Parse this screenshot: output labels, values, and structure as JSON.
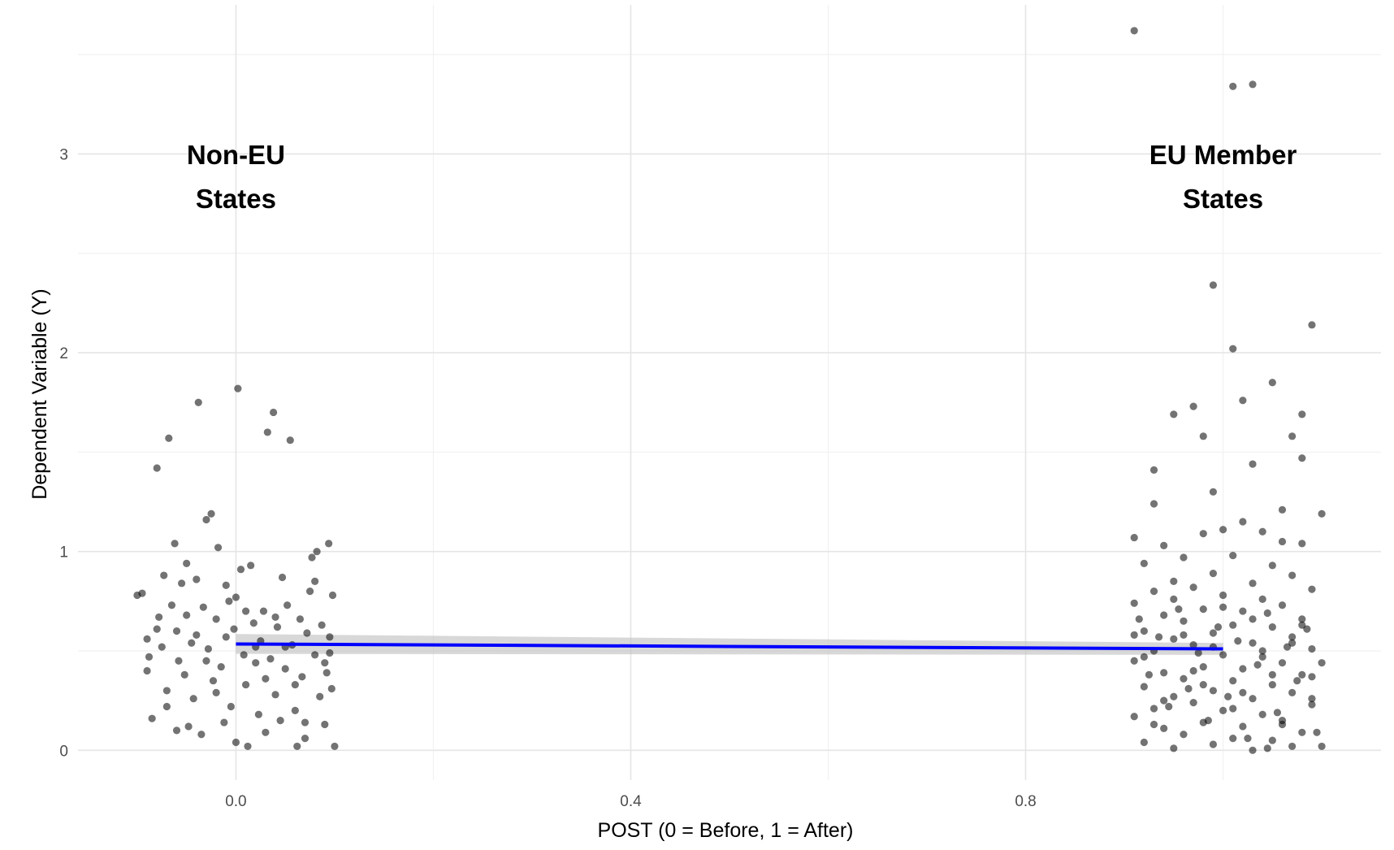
{
  "chart_data": {
    "type": "scatter",
    "title": "",
    "xlabel": "POST (0 = Before, 1 = After)",
    "ylabel": "Dependent Variable (Y)",
    "xlim": [
      -0.16,
      1.16
    ],
    "ylim": [
      -0.15,
      3.75
    ],
    "x_ticks": [
      0.0,
      0.4,
      0.8
    ],
    "x_tick_labels": [
      "0.0",
      "0.4",
      "0.8"
    ],
    "x_minor_ticks": [
      0.2,
      0.6,
      1.0
    ],
    "y_ticks": [
      0,
      1,
      2,
      3
    ],
    "y_tick_labels": [
      "0",
      "1",
      "2",
      "3"
    ],
    "y_minor_ticks": [
      0.5,
      1.5,
      2.5,
      3.5
    ],
    "grid": true,
    "legend": "none",
    "point_color": "#000000",
    "line_color": "#0000ff",
    "band_color": "#bebebe",
    "annotations": [
      {
        "lines": [
          "Non-EU",
          "States"
        ],
        "x": 0.0,
        "y": 2.9
      },
      {
        "lines": [
          "EU Member",
          "States"
        ],
        "x": 1.0,
        "y": 2.9
      }
    ],
    "fit_line": {
      "x": [
        0.0,
        1.0
      ],
      "y": [
        0.535,
        0.51
      ],
      "band_lower": [
        0.485,
        0.48
      ],
      "band_upper": [
        0.585,
        0.54
      ]
    },
    "series": [
      {
        "group": "Non-EU States",
        "points": [
          [
            -0.1,
            0.78
          ],
          [
            -0.095,
            0.79
          ],
          [
            -0.09,
            0.56
          ],
          [
            -0.088,
            0.47
          ],
          [
            -0.085,
            0.16
          ],
          [
            -0.08,
            1.42
          ],
          [
            -0.078,
            0.67
          ],
          [
            -0.075,
            0.52
          ],
          [
            -0.073,
            0.88
          ],
          [
            -0.07,
            0.3
          ],
          [
            -0.068,
            1.57
          ],
          [
            -0.065,
            0.73
          ],
          [
            -0.062,
            1.04
          ],
          [
            -0.06,
            0.6
          ],
          [
            -0.058,
            0.45
          ],
          [
            -0.055,
            0.84
          ],
          [
            -0.052,
            0.38
          ],
          [
            -0.05,
            0.68
          ],
          [
            -0.048,
            0.12
          ],
          [
            -0.045,
            0.54
          ],
          [
            -0.043,
            0.26
          ],
          [
            -0.04,
            0.86
          ],
          [
            -0.038,
            1.75
          ],
          [
            -0.035,
            0.08
          ],
          [
            -0.033,
            0.72
          ],
          [
            -0.03,
            1.16
          ],
          [
            -0.028,
            0.51
          ],
          [
            -0.025,
            1.19
          ],
          [
            -0.023,
            0.35
          ],
          [
            -0.02,
            0.66
          ],
          [
            -0.018,
            1.02
          ],
          [
            -0.015,
            0.42
          ],
          [
            -0.012,
            0.14
          ],
          [
            -0.01,
            0.57
          ],
          [
            -0.007,
            0.75
          ],
          [
            -0.005,
            0.22
          ],
          [
            -0.002,
            0.61
          ],
          [
            0.0,
            0.04
          ],
          [
            0.002,
            1.82
          ],
          [
            0.005,
            0.91
          ],
          [
            0.008,
            0.48
          ],
          [
            0.01,
            0.33
          ],
          [
            0.012,
            0.02
          ],
          [
            0.015,
            0.93
          ],
          [
            0.018,
            0.64
          ],
          [
            0.02,
            0.44
          ],
          [
            0.023,
            0.18
          ],
          [
            0.025,
            0.55
          ],
          [
            0.028,
            0.7
          ],
          [
            0.03,
            0.09
          ],
          [
            0.032,
            1.6
          ],
          [
            0.035,
            0.46
          ],
          [
            0.038,
            1.7
          ],
          [
            0.04,
            0.28
          ],
          [
            0.042,
            0.62
          ],
          [
            0.045,
            0.15
          ],
          [
            0.047,
            0.87
          ],
          [
            0.05,
            0.41
          ],
          [
            0.052,
            0.73
          ],
          [
            0.055,
            1.56
          ],
          [
            0.057,
            0.53
          ],
          [
            0.06,
            0.2
          ],
          [
            0.062,
            0.02
          ],
          [
            0.065,
            0.66
          ],
          [
            0.067,
            0.37
          ],
          [
            0.07,
            0.14
          ],
          [
            0.072,
            0.59
          ],
          [
            0.075,
            0.8
          ],
          [
            0.077,
            0.97
          ],
          [
            0.08,
            0.48
          ],
          [
            0.082,
            1.0
          ],
          [
            0.085,
            0.27
          ],
          [
            0.087,
            0.63
          ],
          [
            0.09,
            0.13
          ],
          [
            0.092,
            0.39
          ],
          [
            0.094,
            1.04
          ],
          [
            0.095,
            0.57
          ],
          [
            0.097,
            0.31
          ],
          [
            0.098,
            0.78
          ],
          [
            0.1,
            0.02
          ],
          [
            -0.09,
            0.4
          ],
          [
            -0.07,
            0.22
          ],
          [
            -0.05,
            0.94
          ],
          [
            -0.03,
            0.45
          ],
          [
            -0.01,
            0.83
          ],
          [
            0.01,
            0.7
          ],
          [
            0.03,
            0.36
          ],
          [
            0.05,
            0.52
          ],
          [
            0.07,
            0.06
          ],
          [
            0.09,
            0.44
          ],
          [
            -0.06,
            0.1
          ],
          [
            -0.04,
            0.58
          ],
          [
            -0.02,
            0.29
          ],
          [
            0.0,
            0.77
          ],
          [
            0.02,
            0.52
          ],
          [
            0.04,
            0.67
          ],
          [
            0.06,
            0.33
          ],
          [
            0.08,
            0.85
          ],
          [
            -0.08,
            0.61
          ],
          [
            0.095,
            0.49
          ]
        ]
      },
      {
        "group": "EU Member States",
        "points": [
          [
            0.91,
            3.62
          ],
          [
            1.01,
            3.34
          ],
          [
            1.03,
            3.35
          ],
          [
            0.99,
            2.34
          ],
          [
            1.09,
            2.14
          ],
          [
            1.01,
            2.02
          ],
          [
            1.05,
            1.85
          ],
          [
            1.02,
            1.76
          ],
          [
            0.97,
            1.73
          ],
          [
            0.95,
            1.69
          ],
          [
            1.08,
            1.69
          ],
          [
            0.98,
            1.58
          ],
          [
            1.07,
            1.58
          ],
          [
            1.08,
            1.47
          ],
          [
            0.93,
            1.41
          ],
          [
            1.03,
            1.44
          ],
          [
            0.99,
            1.3
          ],
          [
            1.06,
            1.21
          ],
          [
            1.1,
            1.19
          ],
          [
            0.93,
            1.24
          ],
          [
            1.02,
            1.15
          ],
          [
            1.04,
            1.1
          ],
          [
            0.98,
            1.09
          ],
          [
            0.91,
            1.07
          ],
          [
            1.0,
            1.11
          ],
          [
            1.06,
            1.05
          ],
          [
            1.08,
            1.04
          ],
          [
            0.94,
            1.03
          ],
          [
            0.96,
            0.97
          ],
          [
            1.01,
            0.98
          ],
          [
            0.92,
            0.94
          ],
          [
            1.05,
            0.93
          ],
          [
            0.99,
            0.89
          ],
          [
            1.07,
            0.88
          ],
          [
            0.95,
            0.85
          ],
          [
            1.03,
            0.84
          ],
          [
            0.97,
            0.82
          ],
          [
            1.09,
            0.81
          ],
          [
            0.93,
            0.8
          ],
          [
            1.0,
            0.78
          ],
          [
            1.04,
            0.76
          ],
          [
            0.91,
            0.74
          ],
          [
            1.06,
            0.73
          ],
          [
            0.98,
            0.71
          ],
          [
            1.02,
            0.7
          ],
          [
            0.94,
            0.68
          ],
          [
            1.08,
            0.66
          ],
          [
            0.96,
            0.65
          ],
          [
            1.01,
            0.63
          ],
          [
            1.05,
            0.62
          ],
          [
            0.92,
            0.6
          ],
          [
            0.99,
            0.59
          ],
          [
            1.07,
            0.57
          ],
          [
            0.95,
            0.56
          ],
          [
            1.03,
            0.54
          ],
          [
            0.97,
            0.53
          ],
          [
            1.09,
            0.51
          ],
          [
            0.93,
            0.5
          ],
          [
            1.0,
            0.48
          ],
          [
            1.04,
            0.47
          ],
          [
            0.91,
            0.45
          ],
          [
            1.06,
            0.44
          ],
          [
            0.98,
            0.42
          ],
          [
            1.02,
            0.41
          ],
          [
            0.94,
            0.39
          ],
          [
            1.08,
            0.38
          ],
          [
            0.96,
            0.36
          ],
          [
            1.01,
            0.35
          ],
          [
            1.05,
            0.33
          ],
          [
            0.92,
            0.32
          ],
          [
            0.99,
            0.3
          ],
          [
            1.07,
            0.29
          ],
          [
            0.95,
            0.27
          ],
          [
            1.03,
            0.26
          ],
          [
            0.97,
            0.24
          ],
          [
            1.09,
            0.23
          ],
          [
            0.93,
            0.21
          ],
          [
            1.0,
            0.2
          ],
          [
            1.04,
            0.18
          ],
          [
            0.91,
            0.17
          ],
          [
            1.06,
            0.15
          ],
          [
            0.98,
            0.14
          ],
          [
            1.02,
            0.12
          ],
          [
            0.94,
            0.11
          ],
          [
            1.08,
            0.09
          ],
          [
            0.96,
            0.08
          ],
          [
            1.01,
            0.06
          ],
          [
            1.05,
            0.05
          ],
          [
            0.92,
            0.04
          ],
          [
            0.99,
            0.03
          ],
          [
            1.07,
            0.02
          ],
          [
            0.95,
            0.01
          ],
          [
            1.03,
            0.0
          ],
          [
            1.1,
            0.02
          ],
          [
            1.045,
            0.01
          ],
          [
            0.915,
            0.66
          ],
          [
            0.925,
            0.38
          ],
          [
            0.935,
            0.57
          ],
          [
            0.945,
            0.22
          ],
          [
            0.955,
            0.71
          ],
          [
            0.965,
            0.31
          ],
          [
            0.975,
            0.49
          ],
          [
            0.985,
            0.15
          ],
          [
            0.995,
            0.62
          ],
          [
            1.005,
            0.27
          ],
          [
            1.015,
            0.55
          ],
          [
            1.025,
            0.06
          ],
          [
            1.035,
            0.43
          ],
          [
            1.045,
            0.69
          ],
          [
            1.055,
            0.19
          ],
          [
            1.065,
            0.52
          ],
          [
            1.075,
            0.35
          ],
          [
            1.085,
            0.61
          ],
          [
            1.095,
            0.09
          ],
          [
            1.1,
            0.44
          ],
          [
            0.92,
            0.47
          ],
          [
            0.94,
            0.25
          ],
          [
            0.96,
            0.58
          ],
          [
            0.98,
            0.33
          ],
          [
            1.0,
            0.72
          ],
          [
            1.02,
            0.29
          ],
          [
            1.04,
            0.5
          ],
          [
            1.06,
            0.13
          ],
          [
            1.08,
            0.63
          ],
          [
            1.09,
            0.37
          ],
          [
            0.93,
            0.13
          ],
          [
            0.95,
            0.76
          ],
          [
            0.97,
            0.4
          ],
          [
            0.99,
            0.52
          ],
          [
            1.01,
            0.21
          ],
          [
            1.03,
            0.66
          ],
          [
            1.05,
            0.38
          ],
          [
            1.07,
            0.54
          ],
          [
            1.09,
            0.26
          ],
          [
            0.91,
            0.58
          ]
        ]
      }
    ]
  }
}
